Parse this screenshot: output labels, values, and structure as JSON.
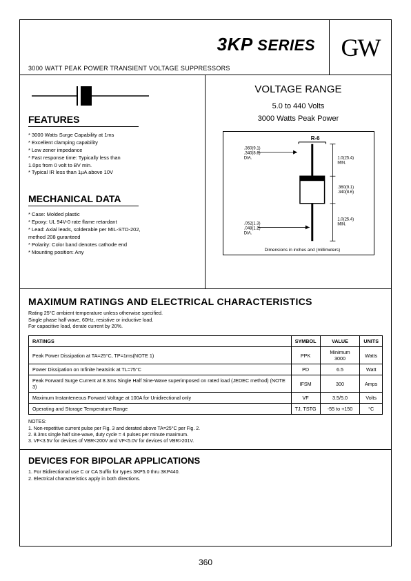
{
  "header": {
    "series_bold": "3KP",
    "series_rest": " SERIES",
    "subtitle": "3000 WATT PEAK POWER TRANSIENT VOLTAGE SUPPRESSORS",
    "logo": "GW"
  },
  "features": {
    "heading": "FEATURES",
    "items": [
      "* 3000 Watts Surge Capability at 1ms",
      "* Excellent clamping capability",
      "* Low zener impedance",
      "* Fast response time: Typically less than",
      "   1.0ps from 0 volt to BV min.",
      "* Typical IR less than 1µA above 10V"
    ]
  },
  "mechanical": {
    "heading": "MECHANICAL DATA",
    "items": [
      "* Case: Molded plastic",
      "* Epoxy: UL 94V-0 rate flame retardant",
      "* Lead: Axial leads, solderable per MIL-STD-202,",
      "   method 208 guranteed",
      "* Polarity: Color band denotes cathode end",
      "* Mounting position: Any"
    ]
  },
  "voltage_range": {
    "heading": "VOLTAGE RANGE",
    "line1": "5.0 to 440 Volts",
    "line2": "3000 Watts Peak Power",
    "caption": "Dimensions in inches and (millimeters)",
    "pkg_label": "R-6",
    "dims": {
      "body_dia": ".360(9.1)\n.340(8.6)\nDIA.",
      "lead_len": "1.0(25.4)\nMIN.",
      "body_len": ".360(9.1)\n.340(8.6)",
      "lead_dia": ".052(1.3)\n.048(1.2)\nDIA."
    }
  },
  "ratings": {
    "heading": "MAXIMUM RATINGS AND ELECTRICAL CHARACTERISTICS",
    "intro": [
      "Rating 25°C ambient temperature unless otherwise specified.",
      "Single phase half wave, 60Hz, resistive or inductive load.",
      "For capacitive load, derate current by 20%."
    ],
    "columns": [
      "RATINGS",
      "SYMBOL",
      "VALUE",
      "UNITS"
    ],
    "rows": [
      [
        "Peak Power Dissipation at TA=25°C, TP=1ms(NOTE 1)",
        "PPK",
        "Minimum 3000",
        "Watts"
      ],
      [
        "Power Dissipation on Infinite heatsink at TL=75°C",
        "PD",
        "6.5",
        "Watt"
      ],
      [
        "Peak Forward Surge Current at 8.3ms Single Half Sine-Wave superimposed on rated load (JEDEC method) (NOTE 3)",
        "IFSM",
        "300",
        "Amps"
      ],
      [
        "Maximum Instanteneous Forward Voltage at 100A for Unidirectional only",
        "VF",
        "3.5/5.0",
        "Volts"
      ],
      [
        "Operating and Storage Temperature Range",
        "TJ, TSTG",
        "-55 to +150",
        "°C"
      ]
    ],
    "notes_label": "NOTES:",
    "notes": [
      "1. Non-repetitive current pulse per Fig. 3 and derated above TA=25°C per Fig. 2.",
      "2. 8.3ms single half sine-wave, duty cycle = 4 pulses per minute maximum.",
      "3. VF<3.5V for devices of VBR<200V and VF<5.0V for devices of VBR>201V."
    ]
  },
  "bipolar": {
    "heading": "DEVICES FOR BIPOLAR APPLICATIONS",
    "items": [
      "1. For Bidirectional use C or CA Suffix for types 3KP5.0 thru 3KP440.",
      "2. Electrical characteristics apply in both directions."
    ]
  },
  "page_number": "360",
  "colors": {
    "border": "#000000",
    "text": "#000000",
    "bg": "#ffffff"
  }
}
